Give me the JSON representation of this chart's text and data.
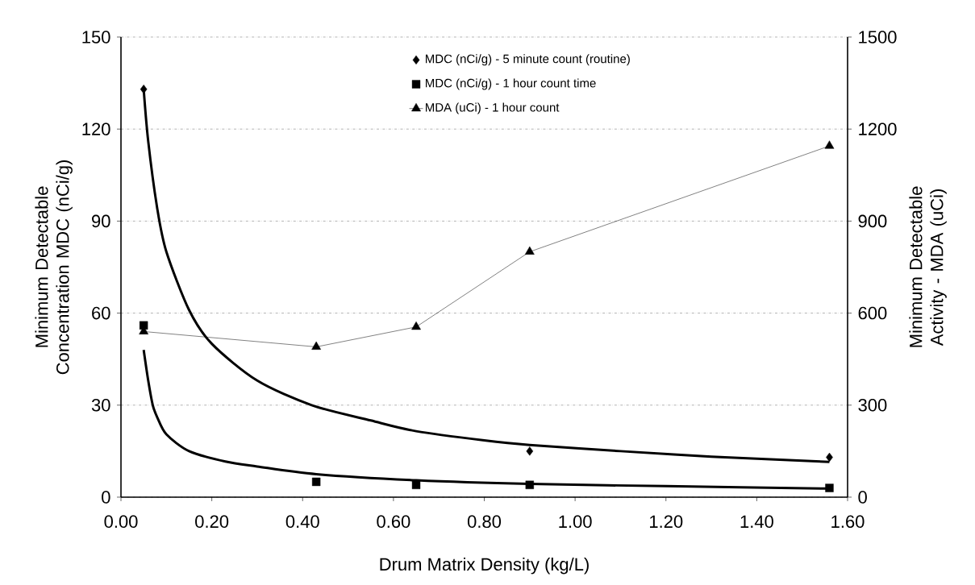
{
  "chart_data": {
    "type": "scatter",
    "xlabel": "Drum Matrix Density (kg/L)",
    "ylabel": "Minimum Detectable Concentration MDC (nCi/g)",
    "y2label": "Minimum Detectable Activity - MDA (uCi)",
    "xlim": [
      0,
      1.6
    ],
    "xticks": [
      {
        "value": 0,
        "label": "0.00"
      },
      {
        "value": 0.2,
        "label": "0.20"
      },
      {
        "value": 0.4,
        "label": "0.40"
      },
      {
        "value": 0.6,
        "label": "0.60"
      },
      {
        "value": 0.8,
        "label": "0.80"
      },
      {
        "value": 1.0,
        "label": "1.00"
      },
      {
        "value": 1.2,
        "label": "1.20"
      },
      {
        "value": 1.4,
        "label": "1.40"
      },
      {
        "value": 1.6,
        "label": "1.60"
      }
    ],
    "ylim": [
      0,
      150
    ],
    "yticks": [
      0,
      30,
      60,
      90,
      120,
      150
    ],
    "y2lim": [
      0,
      1500
    ],
    "y2ticks": [
      0,
      300,
      600,
      900,
      1200,
      1500
    ],
    "grid": "y",
    "legend": "top",
    "line_style": "solid",
    "series": [
      {
        "name": "MDC (nCi/g) - 5 minute count (routine)",
        "marker": "diamond",
        "color": "#000000",
        "x": [
          0.05,
          0.9,
          1.56
        ],
        "values": [
          133,
          15,
          13
        ]
      },
      {
        "name": "MDC (nCi/g) - 1 hour count time",
        "marker": "square",
        "color": "#000000",
        "x": [
          0.05,
          0.43,
          0.65,
          0.9,
          1.56
        ],
        "values": [
          56,
          5,
          4,
          4,
          3
        ]
      },
      {
        "name": "MDA (uCi) - 1 hour count",
        "type": "line",
        "marker": "triangle",
        "axis": "y2",
        "color": "#000000",
        "x": [
          0.05,
          0.43,
          0.65,
          0.9,
          1.56
        ],
        "values": [
          540,
          490,
          555,
          800,
          1145
        ]
      },
      {
        "type": "line",
        "marker": "none",
        "color": "#000000",
        "x": [
          0.05,
          0.06,
          0.08,
          0.1,
          0.15,
          0.2,
          0.3,
          0.42,
          0.55,
          0.65,
          0.8,
          0.9,
          1.1,
          1.3,
          1.56
        ],
        "values": [
          133,
          116,
          94,
          80,
          61,
          50,
          38,
          30,
          25,
          21.5,
          18.5,
          17,
          15,
          13.2,
          11.5
        ]
      },
      {
        "type": "line",
        "marker": "none",
        "color": "#000000",
        "x": [
          0.05,
          0.06,
          0.07,
          0.08,
          0.1,
          0.15,
          0.23,
          0.3,
          0.43,
          0.65,
          0.9,
          1.2,
          1.56
        ],
        "values": [
          48,
          38,
          30,
          26,
          20.5,
          15,
          11.6,
          10,
          7.5,
          5.5,
          4.3,
          3.6,
          2.8
        ]
      }
    ]
  }
}
